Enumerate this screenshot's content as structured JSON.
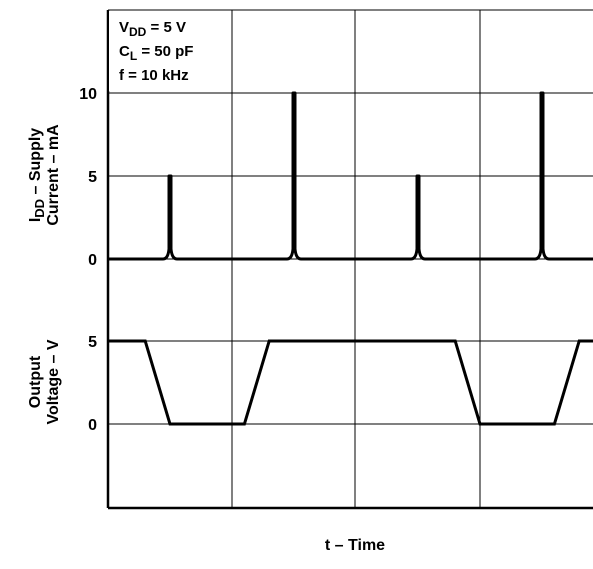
{
  "chart_data": [
    {
      "type": "line",
      "ylabel": "IDD – Supply Current – mA",
      "ylabel_line1_main": "I",
      "ylabel_line1_sub": "DD",
      "ylabel_line1_rest": " – Supply",
      "ylabel_line2": "Current – mA",
      "y_ticks": [
        "10",
        "5",
        "0"
      ],
      "ylim": [
        0,
        10
      ],
      "series": [
        {
          "spikes": [
            {
              "x": 0.1,
              "peak": 5
            },
            {
              "x": 0.3,
              "peak": 10
            },
            {
              "x": 0.5,
              "peak": 5
            },
            {
              "x": 0.7,
              "peak": 10
            }
          ]
        }
      ],
      "conditions": [
        {
          "main": "V",
          "sub": "DD",
          "rest": " = 5 V"
        },
        {
          "main": "C",
          "sub": "L",
          "rest": " = 50 pF"
        },
        {
          "main": "f = 10 kHz",
          "sub": "",
          "rest": ""
        }
      ]
    },
    {
      "type": "line",
      "ylabel": "Output Voltage – V",
      "ylabel_line1": "Output",
      "ylabel_line2": "Voltage – V",
      "y_ticks": [
        "5",
        "0"
      ],
      "ylim": [
        0,
        5
      ],
      "series": [
        {
          "x": [
            0,
            0.04,
            0.06,
            0.1,
            0.22,
            0.26,
            0.3,
            0.54,
            0.56,
            0.6,
            0.72,
            0.76,
            0.8
          ],
          "y": [
            5,
            5,
            5,
            0,
            0,
            5,
            5,
            5,
            5,
            0,
            0,
            5,
            5
          ]
        }
      ]
    }
  ],
  "xlabel": "t – Time"
}
